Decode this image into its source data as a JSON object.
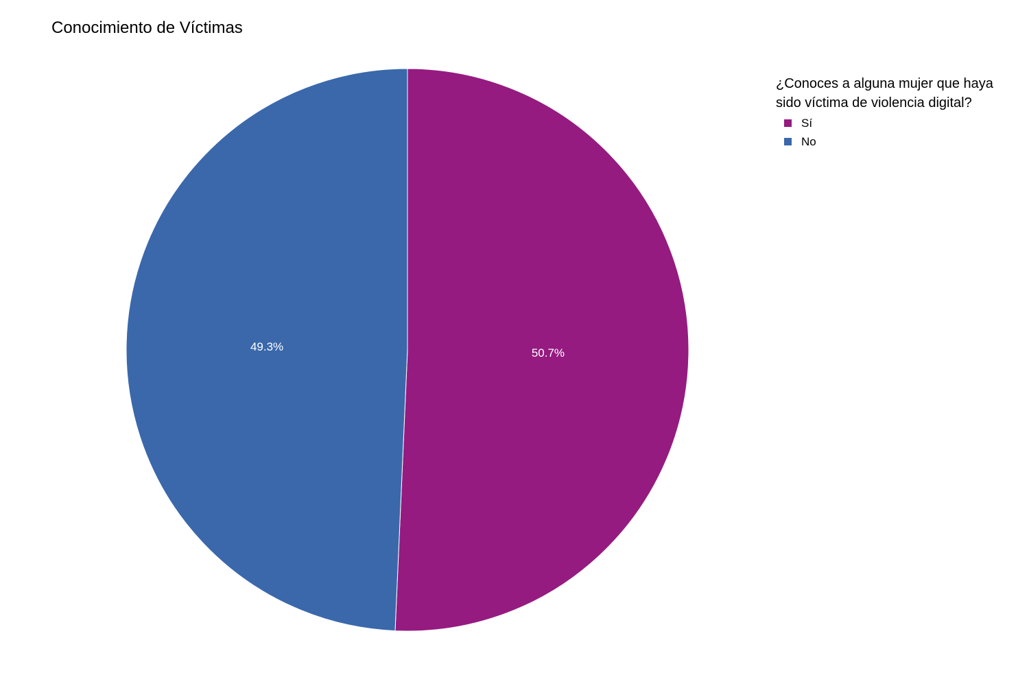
{
  "chart_data": {
    "type": "pie",
    "title": "Conocimiento de Víctimas",
    "legend_title": "¿Conoces a alguna mujer que haya\n sido víctima de violencia digital?",
    "legend_position": "top-right",
    "categories": [
      "Sí",
      "No"
    ],
    "values": [
      50.7,
      49.3
    ],
    "labels": [
      "50.7%",
      "49.3%"
    ],
    "colors": [
      "#951b80",
      "#3a68ab"
    ],
    "start": "top",
    "direction": "clockwise"
  }
}
